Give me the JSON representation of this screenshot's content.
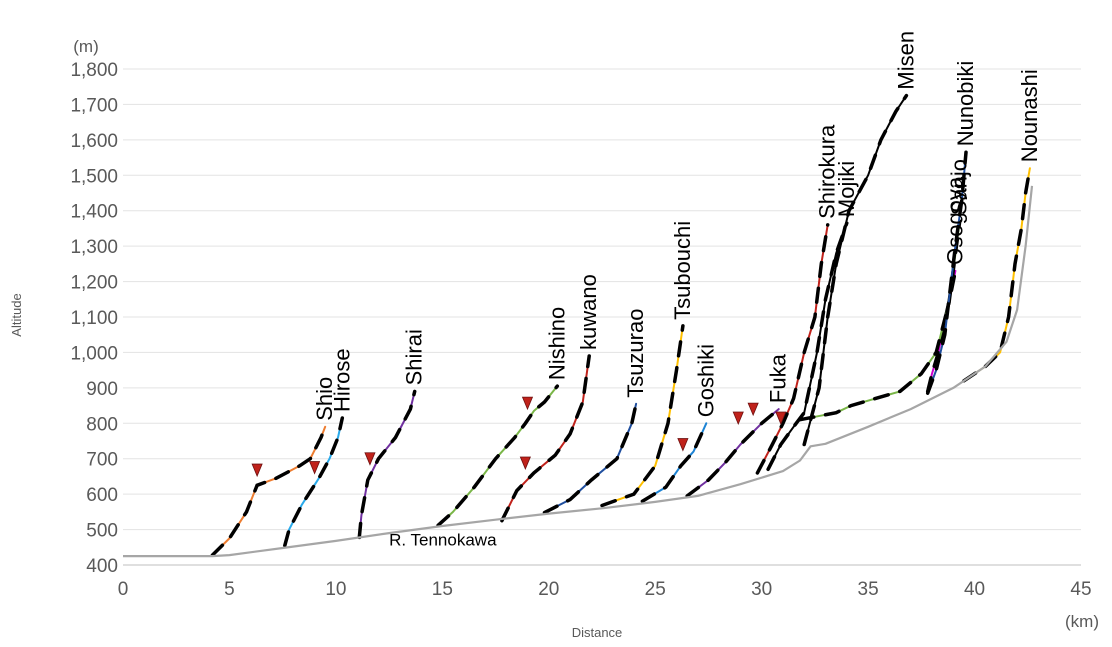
{
  "chart_data": {
    "type": "line",
    "xlabel": "Distance",
    "ylabel": "Altitude",
    "x_unit": "(km)",
    "y_unit": "(m)",
    "xlim": [
      0,
      45
    ],
    "ylim": [
      400,
      1800
    ],
    "x_ticks": [
      "0",
      "5",
      "10",
      "15",
      "20",
      "25",
      "30",
      "35",
      "40",
      "45"
    ],
    "y_ticks": [
      "400",
      "500",
      "600",
      "700",
      "800",
      "900",
      "1,000",
      "1,100",
      "1,200",
      "1,300",
      "1,400",
      "1,500",
      "1,600",
      "1,700",
      "1,800"
    ],
    "grid": "horizontal",
    "main_river": {
      "name": "R. Tennokawa",
      "color": "#a6a6a6",
      "points": [
        [
          0,
          425
        ],
        [
          4.2,
          425
        ],
        [
          5,
          428
        ],
        [
          7.5,
          448
        ],
        [
          10,
          468
        ],
        [
          12.5,
          490
        ],
        [
          15,
          510
        ],
        [
          17.5,
          528
        ],
        [
          20,
          545
        ],
        [
          22.5,
          560
        ],
        [
          25,
          578
        ],
        [
          27,
          595
        ],
        [
          29,
          628
        ],
        [
          31,
          665
        ],
        [
          31.8,
          695
        ],
        [
          32.3,
          735
        ],
        [
          33,
          742
        ],
        [
          35,
          790
        ],
        [
          37,
          840
        ],
        [
          39,
          900
        ],
        [
          40.5,
          960
        ],
        [
          41.5,
          1030
        ],
        [
          42,
          1120
        ],
        [
          42.4,
          1300
        ],
        [
          42.7,
          1470
        ]
      ]
    },
    "tributaries": [
      {
        "name": "Shio",
        "color": "#ed7d31",
        "points": [
          [
            4.2,
            428
          ],
          [
            5,
            475
          ],
          [
            5.8,
            550
          ],
          [
            6.3,
            625
          ],
          [
            7.2,
            645
          ],
          [
            8.3,
            680
          ],
          [
            8.8,
            700
          ],
          [
            9.3,
            760
          ],
          [
            9.5,
            790
          ]
        ],
        "knickpoint": [
          6.3,
          668
        ]
      },
      {
        "name": "Hirose",
        "color": "#29aaeb",
        "points": [
          [
            7.6,
            455
          ],
          [
            7.8,
            500
          ],
          [
            8.4,
            570
          ],
          [
            9.2,
            645
          ],
          [
            9.7,
            700
          ],
          [
            10.1,
            760
          ],
          [
            10.3,
            815
          ]
        ],
        "knickpoint": [
          9,
          675
        ]
      },
      {
        "name": "Shirai",
        "color": "#7030a0",
        "points": [
          [
            11.1,
            478
          ],
          [
            11.2,
            540
          ],
          [
            11.5,
            640
          ],
          [
            12,
            700
          ],
          [
            12.8,
            760
          ],
          [
            13.5,
            840
          ],
          [
            13.7,
            890
          ]
        ],
        "knickpoint": [
          11.6,
          700
        ]
      },
      {
        "name": "Nishino",
        "color": "#7ab648",
        "points": [
          [
            14.8,
            512
          ],
          [
            15.5,
            550
          ],
          [
            16.5,
            620
          ],
          [
            17.5,
            700
          ],
          [
            18.4,
            760
          ],
          [
            18.9,
            800
          ],
          [
            19.3,
            835
          ],
          [
            19.8,
            860
          ],
          [
            20.4,
            905
          ]
        ],
        "knickpoint": [
          19,
          857
        ]
      },
      {
        "name": "kuwano",
        "color": "#c0221b",
        "points": [
          [
            17.8,
            525
          ],
          [
            18.5,
            610
          ],
          [
            19.3,
            660
          ],
          [
            20.3,
            710
          ],
          [
            21,
            770
          ],
          [
            21.6,
            860
          ],
          [
            21.9,
            990
          ]
        ],
        "knickpoint": [
          18.9,
          688
        ]
      },
      {
        "name": "Tsuzurao",
        "color": "#1f4e9e",
        "points": [
          [
            19.8,
            548
          ],
          [
            21,
            585
          ],
          [
            22,
            640
          ],
          [
            23.2,
            700
          ],
          [
            23.9,
            800
          ],
          [
            24.1,
            855
          ]
        ],
        "knickpoint": null
      },
      {
        "name": "Tsubouchi",
        "color": "#ffc000",
        "points": [
          [
            22.5,
            568
          ],
          [
            24,
            600
          ],
          [
            25,
            680
          ],
          [
            25.6,
            800
          ],
          [
            26,
            950
          ],
          [
            26.3,
            1075
          ]
        ],
        "knickpoint": null
      },
      {
        "name": "Goshiki",
        "color": "#1d83d4",
        "points": [
          [
            24.4,
            580
          ],
          [
            25.5,
            620
          ],
          [
            26.2,
            680
          ],
          [
            26.8,
            720
          ],
          [
            27.4,
            800
          ]
        ],
        "knickpoint": [
          26.3,
          740
        ]
      },
      {
        "name": "Fuka",
        "color": "#7030a0",
        "points": [
          [
            26.5,
            595
          ],
          [
            27.5,
            640
          ],
          [
            28.3,
            690
          ],
          [
            29,
            740
          ],
          [
            30,
            800
          ],
          [
            30.8,
            840
          ]
        ],
        "knickpoint": [
          29.6,
          840
        ]
      },
      {
        "name": "Shirokura",
        "color": "#c0221b",
        "points": [
          [
            29.8,
            660
          ],
          [
            30.5,
            740
          ],
          [
            31,
            800
          ],
          [
            31.5,
            870
          ],
          [
            32,
            1000
          ],
          [
            32.5,
            1100
          ],
          [
            32.8,
            1250
          ],
          [
            33.1,
            1360
          ]
        ],
        "knickpoint": [
          28.9,
          815
        ]
      },
      {
        "name": "Mojiki",
        "color": "#000000",
        "points": [
          [
            30.3,
            670
          ],
          [
            30.9,
            740
          ],
          [
            31.5,
            790
          ],
          [
            32,
            830
          ],
          [
            32.6,
            1000
          ],
          [
            33,
            1150
          ],
          [
            33.5,
            1280
          ],
          [
            34,
            1365
          ]
        ],
        "knickpoint": [
          30.9,
          815
        ]
      },
      {
        "name": "Misen",
        "color": "#000000",
        "points": [
          [
            32,
            740
          ],
          [
            32.7,
            900
          ],
          [
            33.1,
            1100
          ],
          [
            33.5,
            1250
          ],
          [
            34.1,
            1400
          ],
          [
            35,
            1500
          ],
          [
            35.6,
            1600
          ],
          [
            36.3,
            1680
          ],
          [
            36.8,
            1725
          ]
        ],
        "knickpoint": null
      },
      {
        "name": "Osogoya",
        "color": "#cc00cc",
        "points": [
          [
            37.8,
            890
          ],
          [
            38,
            940
          ],
          [
            38.3,
            1000
          ],
          [
            38.6,
            1090
          ],
          [
            38.9,
            1170
          ],
          [
            39.1,
            1230
          ]
        ],
        "knickpoint": null
      },
      {
        "name": "Sanjo",
        "color": "#7ab648",
        "points": [
          [
            31.8,
            810
          ],
          [
            33.5,
            830
          ],
          [
            34.2,
            850
          ],
          [
            36.5,
            890
          ],
          [
            37.5,
            940
          ],
          [
            38.2,
            1000
          ],
          [
            38.8,
            1140
          ],
          [
            39.3,
            1370
          ]
        ],
        "knickpoint": null
      },
      {
        "name": "Nunobiki",
        "color": "#1f4e9e",
        "points": [
          [
            37.8,
            885
          ],
          [
            38.2,
            950
          ],
          [
            38.6,
            1050
          ],
          [
            38.8,
            1150
          ],
          [
            39.1,
            1300
          ],
          [
            39.4,
            1430
          ],
          [
            39.6,
            1565
          ]
        ],
        "knickpoint": null
      },
      {
        "name": "Nounashi",
        "color": "#ffc000",
        "points": [
          [
            39.5,
            920
          ],
          [
            40.5,
            960
          ],
          [
            41.2,
            1000
          ],
          [
            41.6,
            1100
          ],
          [
            41.9,
            1250
          ],
          [
            42.2,
            1350
          ],
          [
            42.4,
            1450
          ],
          [
            42.6,
            1520
          ]
        ],
        "knickpoint": null
      }
    ]
  }
}
